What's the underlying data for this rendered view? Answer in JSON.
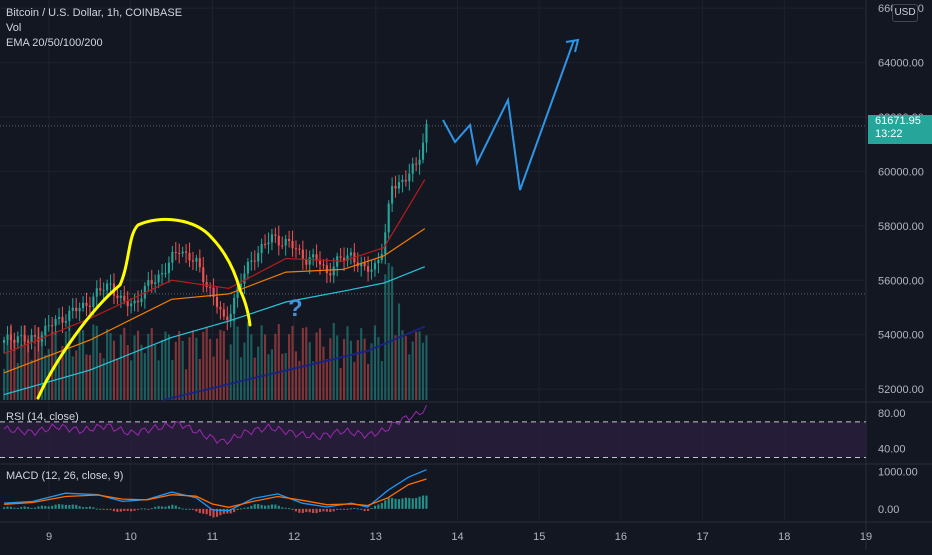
{
  "legend": {
    "title": "Bitcoin / U.S. Dollar, 1h, COINBASE",
    "vol": "Vol",
    "ema": "EMA 20/50/100/200"
  },
  "rsi_label": "RSI (14, close)",
  "macd_label": "MACD (12, 26, close, 9)",
  "currency": "USD",
  "last_price": {
    "value": "61671.95",
    "countdown": "13:22"
  },
  "annotation": {
    "question": "?"
  },
  "colors": {
    "up": "#26a69a",
    "down": "#ef5350",
    "ema20": "#b71c1c",
    "ema50": "#f57c00",
    "ema100": "#26c6da",
    "ema200": "#1a237e",
    "rsi": "#9c27b0",
    "rsi_band": "#2a1f3d",
    "macd": "#2196f3",
    "signal": "#ff6d00",
    "drawing_yellow": "#ffff00",
    "drawing_blue": "#2e95e5",
    "question": "#4a90d9",
    "grid": "#1e222d",
    "axis_text": "#b2b5be"
  },
  "chart_data": [
    {
      "type": "candlestick",
      "title": "Bitcoin / U.S. Dollar, 1h, COINBASE",
      "x_ticks": [
        "9",
        "10",
        "11",
        "12",
        "13",
        "14",
        "15",
        "16",
        "17",
        "18",
        "19"
      ],
      "y_ticks": [
        "52000.00",
        "54000.00",
        "56000.00",
        "58000.00",
        "60000.00",
        "62000.00",
        "64000.00",
        "66000.00"
      ],
      "ylim": [
        51600,
        66300
      ],
      "xlim": [
        8.4,
        19.0
      ],
      "price_path": [
        [
          8.45,
          53700
        ],
        [
          8.6,
          54000
        ],
        [
          8.75,
          53700
        ],
        [
          9.0,
          54300
        ],
        [
          9.2,
          54700
        ],
        [
          9.4,
          55000
        ],
        [
          9.55,
          55400
        ],
        [
          9.75,
          55900
        ],
        [
          9.9,
          55100
        ],
        [
          10.05,
          55200
        ],
        [
          10.25,
          55900
        ],
        [
          10.45,
          56500
        ],
        [
          10.6,
          57200
        ],
        [
          10.8,
          56600
        ],
        [
          11.0,
          55500
        ],
        [
          11.15,
          54400
        ],
        [
          11.3,
          55600
        ],
        [
          11.5,
          56900
        ],
        [
          11.75,
          57600
        ],
        [
          11.95,
          57300
        ],
        [
          12.15,
          56800
        ],
        [
          12.3,
          56700
        ],
        [
          12.4,
          56300
        ],
        [
          12.55,
          56700
        ],
        [
          12.7,
          57000
        ],
        [
          12.85,
          56300
        ],
        [
          13.0,
          56600
        ],
        [
          13.1,
          57300
        ],
        [
          13.2,
          59500
        ],
        [
          13.35,
          59700
        ],
        [
          13.5,
          60200
        ],
        [
          13.62,
          61670
        ]
      ],
      "ema": [
        {
          "period": 20,
          "points": [
            [
              8.45,
              53300
            ],
            [
              9.5,
              54600
            ],
            [
              10.5,
              56000
            ],
            [
              11.2,
              55700
            ],
            [
              11.9,
              56800
            ],
            [
              12.6,
              56700
            ],
            [
              13.1,
              57200
            ],
            [
              13.6,
              59700
            ]
          ]
        },
        {
          "period": 50,
          "points": [
            [
              8.45,
              52600
            ],
            [
              9.5,
              53800
            ],
            [
              10.5,
              55300
            ],
            [
              11.2,
              55500
            ],
            [
              11.9,
              56300
            ],
            [
              12.6,
              56400
            ],
            [
              13.1,
              56900
            ],
            [
              13.6,
              57900
            ]
          ]
        },
        {
          "period": 100,
          "points": [
            [
              8.45,
              51800
            ],
            [
              9.5,
              52700
            ],
            [
              10.5,
              53900
            ],
            [
              11.2,
              54500
            ],
            [
              11.9,
              55200
            ],
            [
              12.6,
              55600
            ],
            [
              13.1,
              55900
            ],
            [
              13.6,
              56500
            ]
          ]
        },
        {
          "period": 200,
          "points": [
            [
              10.4,
              51600
            ],
            [
              11.5,
              52400
            ],
            [
              12.2,
              52900
            ],
            [
              12.9,
              53400
            ],
            [
              13.6,
              54300
            ]
          ]
        }
      ],
      "volume": {
        "max_fraction": 0.72
      }
    },
    {
      "type": "line",
      "title": "RSI (14, close)",
      "y_ticks": [
        "80.00",
        "40.00"
      ],
      "ylim": [
        25,
        90
      ],
      "bands": [
        30,
        70
      ],
      "values": [
        [
          8.45,
          62
        ],
        [
          8.8,
          58
        ],
        [
          9.1,
          65
        ],
        [
          9.4,
          60
        ],
        [
          9.7,
          66
        ],
        [
          10.0,
          57
        ],
        [
          10.3,
          63
        ],
        [
          10.6,
          68
        ],
        [
          10.9,
          55
        ],
        [
          11.15,
          47
        ],
        [
          11.4,
          58
        ],
        [
          11.7,
          64
        ],
        [
          12.0,
          57
        ],
        [
          12.3,
          53
        ],
        [
          12.6,
          60
        ],
        [
          12.9,
          55
        ],
        [
          13.1,
          60
        ],
        [
          13.3,
          72
        ],
        [
          13.5,
          78
        ],
        [
          13.62,
          85
        ]
      ]
    },
    {
      "type": "line",
      "title": "MACD (12, 26, close, 9)",
      "y_ticks": [
        "1000.00",
        "0.00"
      ],
      "ylim": [
        -300,
        1150
      ],
      "series": [
        {
          "values": [
            [
              8.45,
              150
            ],
            [
              8.8,
              200
            ],
            [
              9.2,
              420
            ],
            [
              9.6,
              380
            ],
            [
              9.9,
              200
            ],
            [
              10.2,
              250
            ],
            [
              10.5,
              450
            ],
            [
              10.8,
              300
            ],
            [
              11.0,
              -30
            ],
            [
              11.2,
              -50
            ],
            [
              11.5,
              280
            ],
            [
              11.8,
              400
            ],
            [
              12.1,
              150
            ],
            [
              12.4,
              50
            ],
            [
              12.7,
              150
            ],
            [
              12.9,
              50
            ],
            [
              13.15,
              500
            ],
            [
              13.4,
              850
            ],
            [
              13.62,
              1050
            ]
          ]
        },
        {
          "values": [
            [
              8.45,
              120
            ],
            [
              8.8,
              170
            ],
            [
              9.2,
              330
            ],
            [
              9.6,
              370
            ],
            [
              9.9,
              260
            ],
            [
              10.2,
              240
            ],
            [
              10.5,
              380
            ],
            [
              10.8,
              340
            ],
            [
              11.0,
              130
            ],
            [
              11.2,
              40
            ],
            [
              11.5,
              200
            ],
            [
              11.8,
              330
            ],
            [
              12.1,
              230
            ],
            [
              12.4,
              110
            ],
            [
              12.7,
              130
            ],
            [
              12.9,
              90
            ],
            [
              13.15,
              300
            ],
            [
              13.4,
              650
            ],
            [
              13.62,
              800
            ]
          ]
        }
      ]
    }
  ]
}
